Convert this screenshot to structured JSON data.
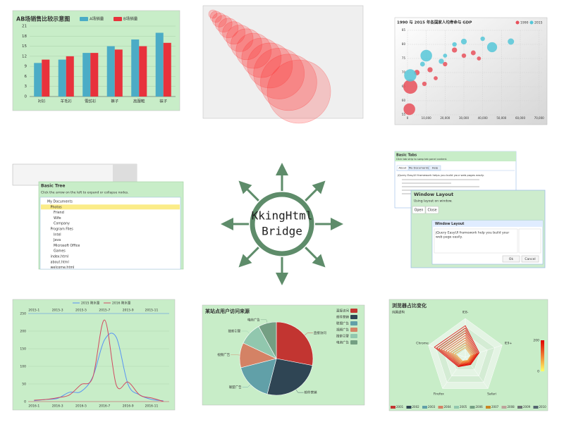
{
  "chart_data": [
    {
      "type": "bar",
      "title": "AB场销售比较示意图",
      "categories": [
        "衬衫",
        "羊毛衫",
        "雪纺衫",
        "裤子",
        "高跟鞋",
        "袜子"
      ],
      "series": [
        {
          "name": "A场销量",
          "color": "#4bacc6",
          "values": [
            10,
            11,
            13,
            15,
            17,
            19
          ]
        },
        {
          "name": "B场销量",
          "color": "#e8323c",
          "values": [
            11,
            12,
            13,
            14,
            15,
            16
          ]
        }
      ],
      "ylim": [
        0,
        21
      ],
      "yticks": [
        0,
        3,
        6,
        9,
        12,
        15,
        18,
        21
      ],
      "grid": true
    },
    {
      "type": "bubble",
      "color": "#ff2a2a",
      "x": [
        0,
        1,
        2,
        3,
        4,
        5,
        6,
        7,
        8,
        9,
        10,
        11,
        12,
        13
      ],
      "values": [
        13,
        12,
        11,
        10,
        9,
        8,
        7,
        6,
        5,
        4,
        3,
        2,
        1,
        0
      ],
      "sizes": [
        6,
        8,
        10,
        12,
        14,
        16,
        19,
        22,
        25,
        28,
        32,
        36,
        40,
        45
      ]
    },
    {
      "type": "scatter",
      "title": "1990 与 2015 年各国家人均寿命与 GDP",
      "series": [
        {
          "name": "1990",
          "color": "#e8505b",
          "x": [
            1500,
            1000,
            30000,
            25000,
            20000,
            12000,
            15000,
            35000,
            9000,
            5000,
            38000
          ],
          "values": [
            65,
            57,
            76,
            78,
            73,
            71,
            68,
            77,
            66,
            70,
            75
          ],
          "sizes": [
            60,
            40,
            6,
            8,
            6,
            8,
            5,
            7,
            6,
            9,
            5
          ]
        },
        {
          "name": "2015",
          "color": "#56c7d8",
          "x": [
            1500,
            10000,
            45000,
            25000,
            30000,
            55000,
            18000,
            8000,
            40000,
            20000
          ],
          "values": [
            69,
            76,
            79,
            80,
            81,
            81,
            74,
            73,
            82,
            76
          ],
          "sizes": [
            45,
            40,
            30,
            6,
            10,
            12,
            8,
            7,
            6,
            5
          ]
        }
      ],
      "xlim": [
        0,
        72000
      ],
      "xticks": [
        0,
        {
          "value": 10000,
          "label": "10,000"
        },
        {
          "value": 20000,
          "label": "20,000"
        },
        {
          "value": 30000,
          "label": "30,000"
        },
        {
          "value": 40000,
          "label": "40,000"
        },
        {
          "value": 50000,
          "label": "50,000"
        },
        {
          "value": 60000,
          "label": "60,000"
        },
        {
          "value": 70000,
          "label": "70,000"
        }
      ],
      "ylim": [
        55,
        85
      ],
      "yticks": [
        55,
        60,
        65,
        70,
        75,
        80,
        85
      ],
      "grid": true
    },
    {
      "type": "line",
      "categories": [
        "2016-1",
        null,
        "2016-3",
        null,
        "2016-5",
        null,
        "2016-7",
        null,
        "2016-9",
        null,
        "2016-11",
        null
      ],
      "categories2": [
        "2015-1",
        null,
        "2015-3",
        null,
        "2015-5",
        null,
        "2015-7",
        null,
        "2015-9",
        null,
        "2015-11",
        null
      ],
      "series": [
        {
          "name": "2015 降水量",
          "color": "#5793f3",
          "axis": "x2",
          "values": [
            2.6,
            5.9,
            9,
            26.4,
            28.7,
            70.7,
            175.6,
            182.2,
            48.7,
            18.8,
            6,
            2.3
          ]
        },
        {
          "name": "2016 降水量",
          "color": "#d14a61",
          "values": [
            3.9,
            5.9,
            11.1,
            18.7,
            48.3,
            69.2,
            231.6,
            46.6,
            55.4,
            18.4,
            10.3,
            0.7
          ]
        }
      ],
      "ylim": [
        0,
        250
      ],
      "yticks": [
        0,
        50,
        100,
        150,
        200,
        250
      ],
      "grid": true
    },
    {
      "type": "pie",
      "title": "某站点用户访问来源",
      "categories": [
        "直接访问",
        "邮件营销",
        "联盟广告",
        "视频广告",
        "搜索引擎",
        "电商广告"
      ],
      "values": [
        28,
        26,
        17,
        11,
        10,
        8
      ],
      "colors": [
        "#c23531",
        "#2f4554",
        "#61a0a8",
        "#d48265",
        "#91c7ae",
        "#749f83"
      ]
    },
    {
      "type": "radar",
      "title": "浏览器占比变化",
      "subtitle": "纯属虚构",
      "indicators": [
        "IE8-",
        "IE9+",
        "Safari",
        "Firefox",
        "Chrome"
      ],
      "rlim": [
        0,
        400
      ],
      "visual_map": [
        0,
        200
      ],
      "series": [
        {
          "name": "2001",
          "color": "#c23531",
          "values": [
            100,
            60,
            40,
            50,
            110
          ]
        },
        {
          "name": "2002",
          "color": "#2f4554",
          "values": [
            125,
            70,
            46,
            58,
            135
          ]
        },
        {
          "name": "2003",
          "color": "#61a0a8",
          "values": [
            150,
            80,
            52,
            66,
            160
          ]
        },
        {
          "name": "2004",
          "color": "#d48265",
          "values": [
            175,
            90,
            58,
            74,
            185
          ]
        },
        {
          "name": "2005",
          "color": "#91c7ae",
          "values": [
            200,
            100,
            64,
            82,
            210
          ]
        },
        {
          "name": "2006",
          "color": "#749f83",
          "values": [
            225,
            110,
            70,
            90,
            235
          ]
        },
        {
          "name": "2007",
          "color": "#ca8622",
          "values": [
            250,
            120,
            76,
            98,
            260
          ]
        },
        {
          "name": "2008",
          "color": "#bda29a",
          "values": [
            275,
            130,
            82,
            106,
            285
          ]
        },
        {
          "name": "2009",
          "color": "#6e7074",
          "values": [
            300,
            140,
            88,
            114,
            310
          ]
        },
        {
          "name": "2010",
          "color": "#546570",
          "values": [
            325,
            150,
            94,
            122,
            335
          ]
        }
      ]
    }
  ],
  "tree": {
    "title": "Basic Tree",
    "description": "Click the arrow on the left to expand or collapse nodes.",
    "nodes": [
      {
        "text": "My Documents",
        "children": [
          {
            "text": "Photos",
            "children": [
              {
                "text": "Friend"
              },
              {
                "text": "Wife"
              },
              {
                "text": "Company"
              }
            ]
          },
          {
            "text": "Program Files",
            "children": [
              {
                "text": "Intel"
              },
              {
                "text": "Java"
              },
              {
                "text": "Microsoft Office"
              },
              {
                "text": "Games"
              }
            ]
          },
          {
            "text": "index.html"
          },
          {
            "text": "about.html"
          },
          {
            "text": "welcome.html"
          }
        ]
      }
    ],
    "selected": "Photos"
  },
  "tabs": {
    "title": "Basic Tabs",
    "description": "Click tab strip to swap tab panel content.",
    "tabs": [
      "About",
      "My Documents",
      "Help"
    ],
    "content": "jQuery EasyUI framework helps you build your web pages easily."
  },
  "window": {
    "title": "Window Layout",
    "buttons": [
      "Open",
      "Close"
    ],
    "note": "Using layout on window.",
    "inner_title": "Window Layout",
    "inner_text": [
      "jQuery EasyUI framework help you build your",
      "web page easily."
    ],
    "actions": [
      "Ok",
      "Cancel"
    ]
  },
  "logo": {
    "lines": [
      "KkingHtml",
      "Bridge"
    ]
  }
}
